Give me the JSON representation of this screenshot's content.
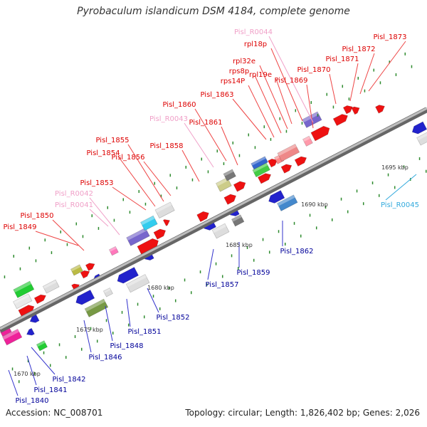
{
  "title": "Pyrobaculum islandicum DSM 4184, complete genome",
  "footer": {
    "accession": "Accession: NC_008701",
    "stats": "Topology: circular; Length: 1,826,402 bp; Genes: 2,026"
  },
  "colors": {
    "backbone": "#888888",
    "label_forward": "#dd0000",
    "label_forward_rna": "#f0a0c8",
    "label_reverse": "#000099",
    "label_reverse_rna": "#33aadd",
    "leader_forward": "#ee4444",
    "leader_forward_rna": "#f0a0c8",
    "leader_reverse": "#3333cc",
    "leader_reverse_rna": "#33aadd",
    "tick": "#2e8b2e"
  },
  "kbp_markers": [
    {
      "label": "1670 kbp"
    },
    {
      "label": "1675 kbp"
    },
    {
      "label": "1680 kbp"
    },
    {
      "label": "1685 kbp"
    },
    {
      "label": "1690 kbp"
    },
    {
      "label": "1695 kbp"
    }
  ],
  "forward_labels": [
    {
      "text": "Pisl_1849",
      "kind": "protein"
    },
    {
      "text": "Pisl_1850",
      "kind": "protein"
    },
    {
      "text": "Pisl_R0041",
      "kind": "rna"
    },
    {
      "text": "Pisl_R0042",
      "kind": "rna"
    },
    {
      "text": "Pisl_1853",
      "kind": "protein"
    },
    {
      "text": "Pisl_1854",
      "kind": "protein"
    },
    {
      "text": "Pisl_1855",
      "kind": "protein"
    },
    {
      "text": "Pisl_1856",
      "kind": "protein"
    },
    {
      "text": "Pisl_1858",
      "kind": "protein"
    },
    {
      "text": "Pisl_R0043",
      "kind": "rna"
    },
    {
      "text": "Pisl_1860",
      "kind": "protein"
    },
    {
      "text": "Pisl_1861",
      "kind": "protein"
    },
    {
      "text": "Pisl_1863",
      "kind": "protein"
    },
    {
      "text": "rps14P",
      "kind": "protein"
    },
    {
      "text": "rps8p",
      "kind": "protein"
    },
    {
      "text": "rpl32e",
      "kind": "protein"
    },
    {
      "text": "rpl19e",
      "kind": "protein"
    },
    {
      "text": "rpl18p",
      "kind": "protein"
    },
    {
      "text": "Pisl_1869",
      "kind": "protein"
    },
    {
      "text": "Pisl_R0044",
      "kind": "rna"
    },
    {
      "text": "Pisl_1870",
      "kind": "protein"
    },
    {
      "text": "Pisl_1871",
      "kind": "protein"
    },
    {
      "text": "Pisl_1872",
      "kind": "protein"
    },
    {
      "text": "Pisl_1873",
      "kind": "protein"
    }
  ],
  "reverse_labels": [
    {
      "text": "Pisl_1840",
      "kind": "protein"
    },
    {
      "text": "Pisl_1841",
      "kind": "protein"
    },
    {
      "text": "Pisl_1842",
      "kind": "protein"
    },
    {
      "text": "Pisl_1846",
      "kind": "protein"
    },
    {
      "text": "Pisl_1848",
      "kind": "protein"
    },
    {
      "text": "Pisl_1851",
      "kind": "protein"
    },
    {
      "text": "Pisl_1852",
      "kind": "protein"
    },
    {
      "text": "Pisl_1857",
      "kind": "protein"
    },
    {
      "text": "Pisl_1859",
      "kind": "protein"
    },
    {
      "text": "Pisl_1862",
      "kind": "protein"
    },
    {
      "text": "Pisl_R0045",
      "kind": "rna"
    }
  ]
}
